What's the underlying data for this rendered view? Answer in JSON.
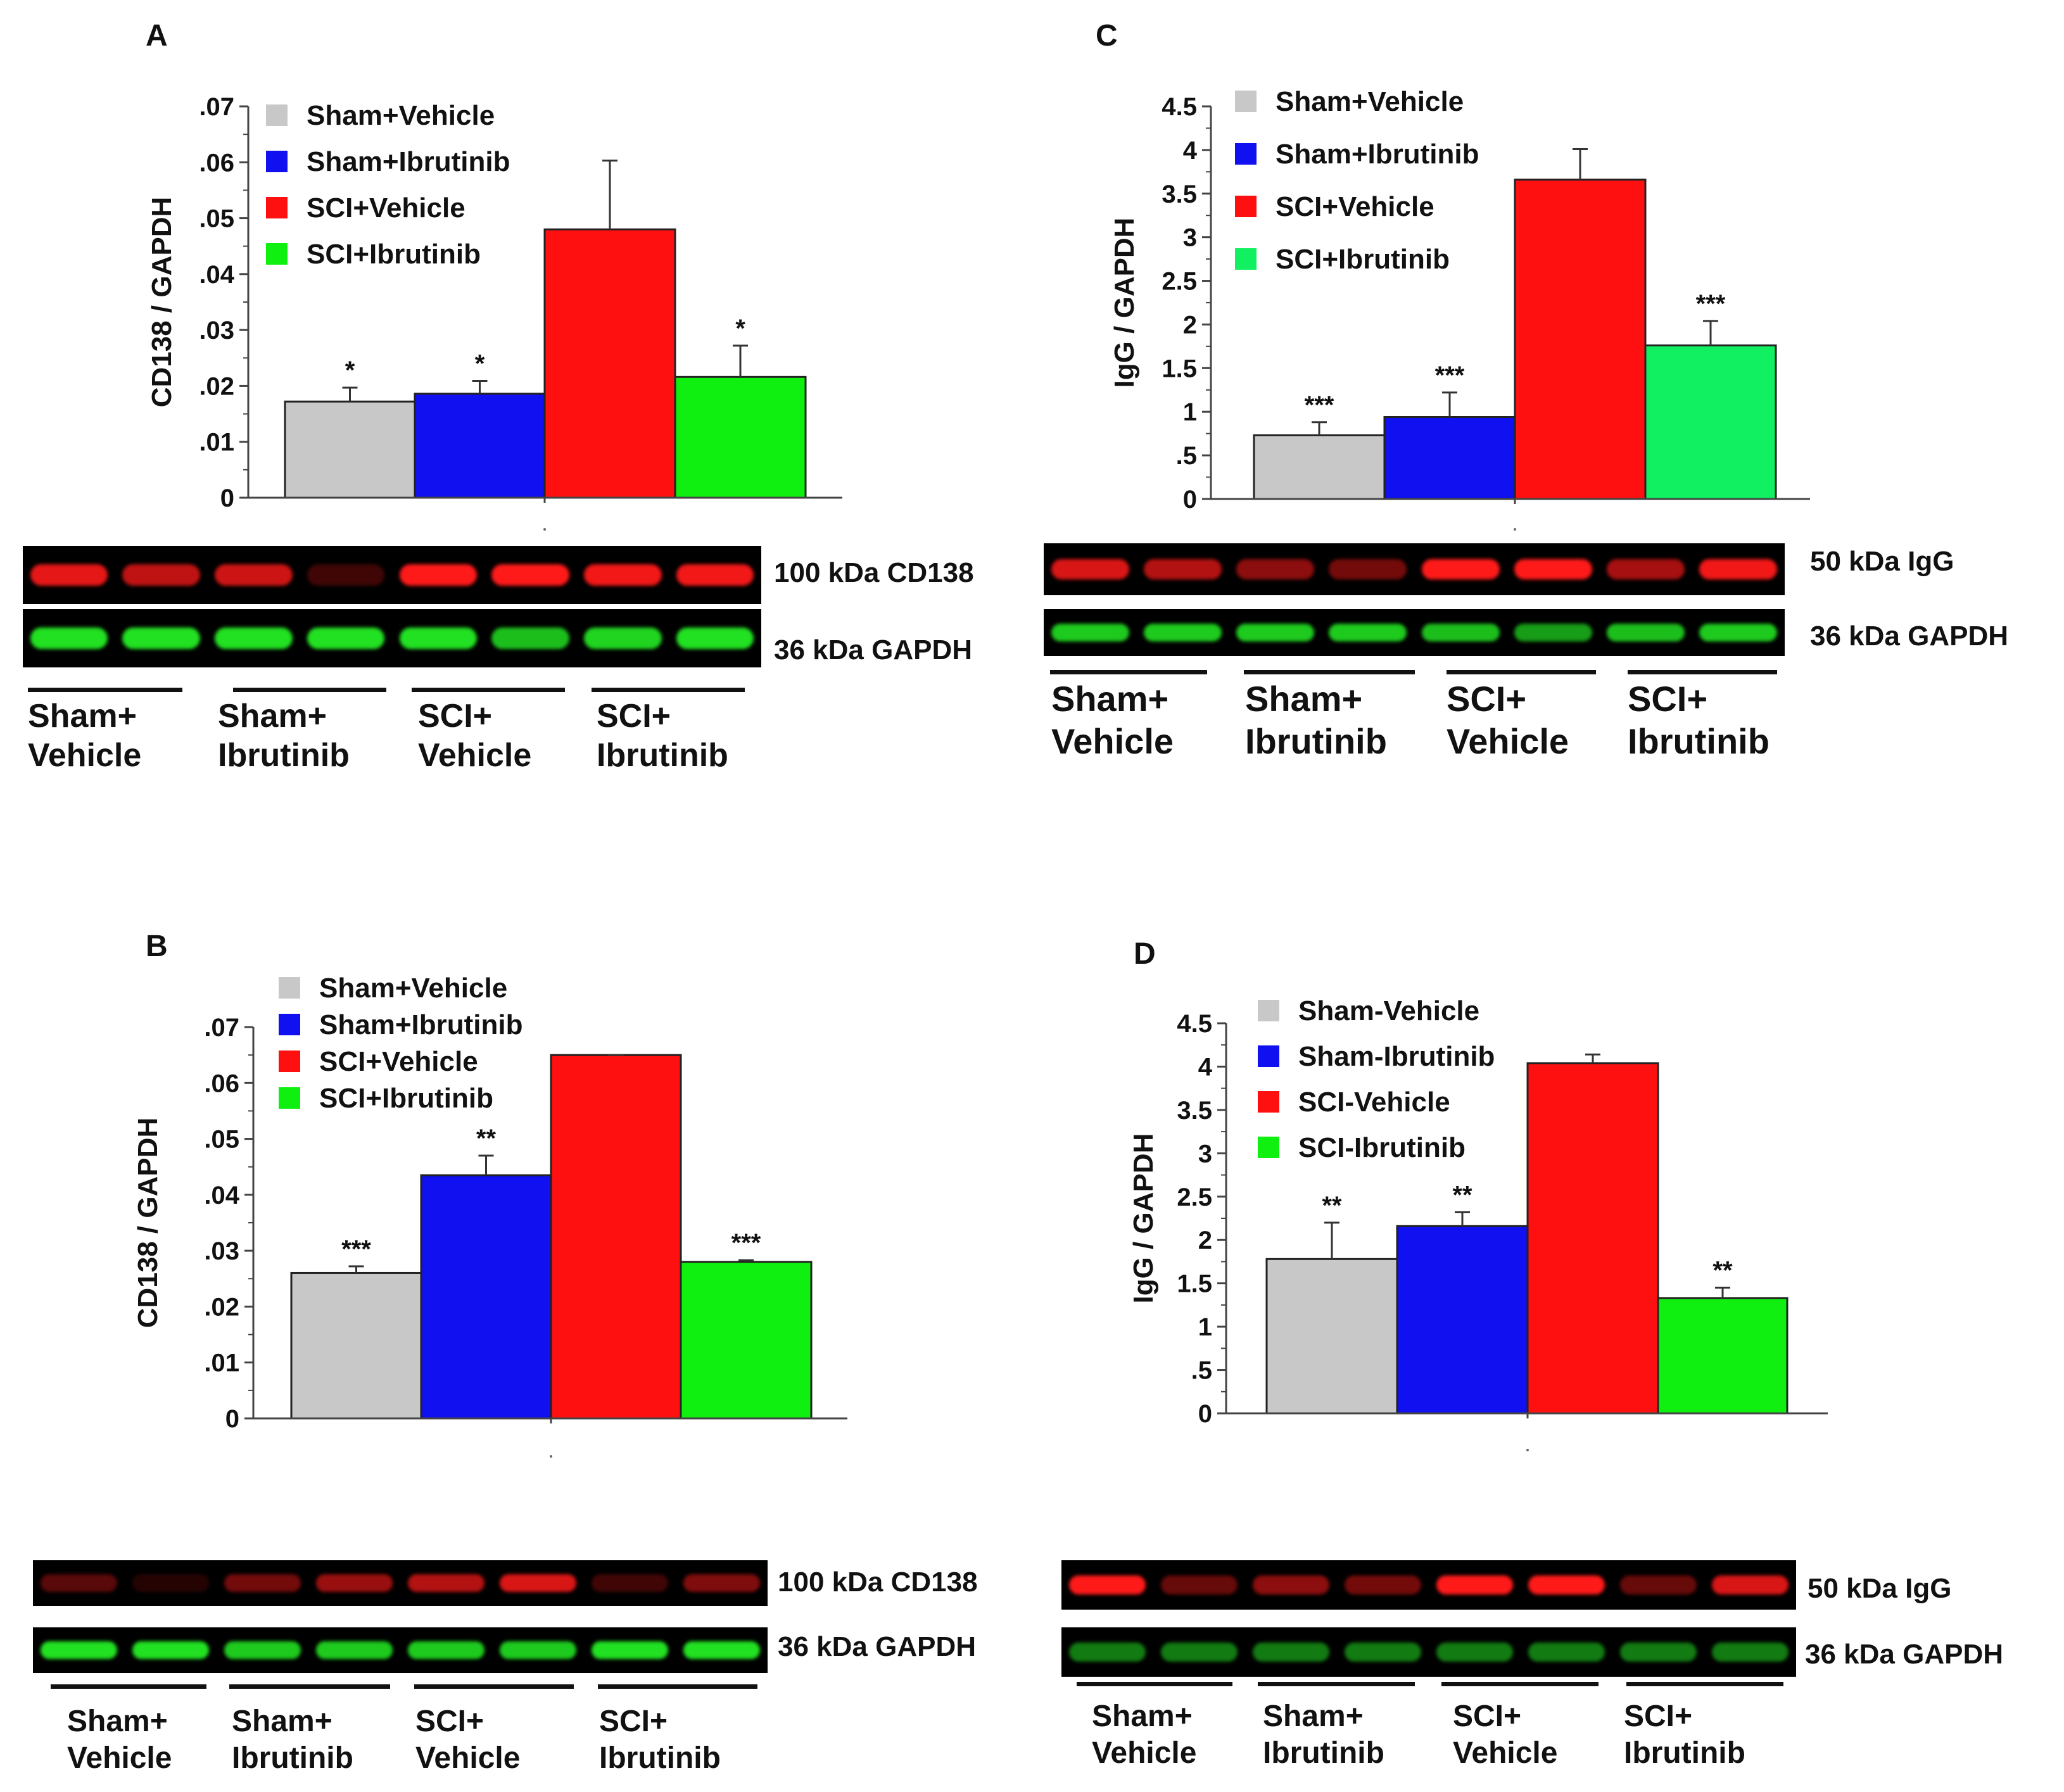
{
  "chart_data": [
    {
      "id": "A",
      "panel_label": "A",
      "type": "bar",
      "ylabel": "CD138 / GAPDH",
      "ylim": [
        0,
        0.07
      ],
      "ytick_values": [
        0,
        0.01,
        0.02,
        0.03,
        0.04,
        0.05,
        0.06,
        0.07
      ],
      "yticks": [
        "0",
        ".01",
        ".02",
        ".03",
        ".04",
        ".05",
        ".06",
        ".07"
      ],
      "categories": [
        "Sham+Vehicle",
        "Sham+Ibrutinib",
        "SCI+Vehicle",
        "SCI+Ibrutinib"
      ],
      "values": [
        0.0172,
        0.0186,
        0.048,
        0.0216
      ],
      "errors": [
        0.0025,
        0.0023,
        0.0123,
        0.0056
      ],
      "significance": [
        "*",
        "*",
        "",
        "*"
      ],
      "colors": [
        "#c8c8c8",
        "#1010f0",
        "#ff1010",
        "#10f010"
      ],
      "legend": [
        "Sham+Vehicle",
        "Sham+Ibrutinib",
        "SCI+Vehicle",
        "SCI+Ibrutinib"
      ],
      "blot": {
        "target_label": "100 kDa CD138",
        "loading_label": "36 kDa GAPDH",
        "groups": [
          [
            "Sham+",
            "Vehicle"
          ],
          [
            "Sham+",
            "Ibrutinib"
          ],
          [
            "SCI+",
            "Vehicle"
          ],
          [
            "SCI+",
            "Ibrutinib"
          ]
        ]
      }
    },
    {
      "id": "B",
      "panel_label": "B",
      "type": "bar",
      "ylabel": "CD138 / GAPDH",
      "ylim": [
        0,
        0.07
      ],
      "ytick_values": [
        0,
        0.01,
        0.02,
        0.03,
        0.04,
        0.05,
        0.06,
        0.07
      ],
      "yticks": [
        "0",
        ".01",
        ".02",
        ".03",
        ".04",
        ".05",
        ".06",
        ".07"
      ],
      "categories": [
        "Sham+Vehicle",
        "Sham+Ibrutinib",
        "SCI+Vehicle",
        "SCI+Ibrutinib"
      ],
      "values": [
        0.026,
        0.0435,
        0.065,
        0.028
      ],
      "errors": [
        0.0012,
        0.0035,
        0.0,
        0.0003
      ],
      "significance": [
        "***",
        "**",
        "",
        "***"
      ],
      "colors": [
        "#c8c8c8",
        "#1010f0",
        "#ff1010",
        "#10f010"
      ],
      "legend": [
        "Sham+Vehicle",
        "Sham+Ibrutinib",
        "SCI+Vehicle",
        "SCI+Ibrutinib"
      ],
      "blot": {
        "target_label": "100 kDa CD138",
        "loading_label": "36 kDa GAPDH",
        "groups": [
          [
            "Sham+",
            "Vehicle"
          ],
          [
            "Sham+",
            "Ibrutinib"
          ],
          [
            "SCI+",
            "Vehicle"
          ],
          [
            "SCI+",
            "Ibrutinib"
          ]
        ]
      }
    },
    {
      "id": "C",
      "panel_label": "C",
      "type": "bar",
      "ylabel": "IgG / GAPDH",
      "ylim": [
        0,
        4.5
      ],
      "ytick_values": [
        0,
        0.5,
        1,
        1.5,
        2,
        2.5,
        3,
        3.5,
        4,
        4.5
      ],
      "yticks": [
        "0",
        ".5",
        "1",
        "1.5",
        "2",
        "2.5",
        "3",
        "3.5",
        "4",
        "4.5"
      ],
      "categories": [
        "Sham+Vehicle",
        "Sham+Ibrutinib",
        "SCI+Vehicle",
        "SCI+Ibrutinib"
      ],
      "values": [
        0.73,
        0.94,
        3.66,
        1.76
      ],
      "errors": [
        0.15,
        0.28,
        0.35,
        0.28
      ],
      "significance": [
        "***",
        "***",
        "",
        "***"
      ],
      "colors": [
        "#c8c8c8",
        "#1010f0",
        "#ff1010",
        "#10f060"
      ],
      "legend": [
        "Sham+Vehicle",
        "Sham+Ibrutinib",
        "SCI+Vehicle",
        "SCI+Ibrutinib"
      ],
      "blot": {
        "target_label": "50 kDa IgG",
        "loading_label": "36 kDa GAPDH",
        "groups": [
          [
            "Sham+",
            "Vehicle"
          ],
          [
            "Sham+",
            "Ibrutinib"
          ],
          [
            "SCI+",
            "Vehicle"
          ],
          [
            "SCI+",
            "Ibrutinib"
          ]
        ]
      }
    },
    {
      "id": "D",
      "panel_label": "D",
      "type": "bar",
      "ylabel": "IgG / GAPDH",
      "ylim": [
        0,
        4.5
      ],
      "ytick_values": [
        0,
        0.5,
        1,
        1.5,
        2,
        2.5,
        3,
        3.5,
        4,
        4.5
      ],
      "yticks": [
        "0",
        ".5",
        "1",
        "1.5",
        "2",
        "2.5",
        "3",
        "3.5",
        "4",
        "4.5"
      ],
      "categories": [
        "Sham-Vehicle",
        "Sham-Ibrutinib",
        "SCI-Vehicle",
        "SCI-Ibrutinib"
      ],
      "values": [
        1.78,
        2.16,
        4.04,
        1.33
      ],
      "errors": [
        0.42,
        0.16,
        0.1,
        0.12
      ],
      "significance": [
        "**",
        "**",
        "",
        "**"
      ],
      "colors": [
        "#c8c8c8",
        "#1010f0",
        "#ff1010",
        "#10f010"
      ],
      "legend": [
        "Sham-Vehicle",
        "Sham-Ibrutinib",
        "SCI-Vehicle",
        "SCI-Ibrutinib"
      ],
      "blot": {
        "target_label": "50 kDa IgG",
        "loading_label": "36 kDa GAPDH",
        "groups": [
          [
            "Sham+",
            "Vehicle"
          ],
          [
            "Sham+",
            "Ibrutinib"
          ],
          [
            "SCI+",
            "Vehicle"
          ],
          [
            "SCI+",
            "Ibrutinib"
          ]
        ]
      }
    }
  ],
  "blot_intensities": {
    "A": {
      "target": [
        0.9,
        0.75,
        0.8,
        0.25,
        1.0,
        1.0,
        0.95,
        0.95
      ],
      "loading": [
        1,
        1,
        1,
        1,
        1,
        0.85,
        0.95,
        1
      ]
    },
    "B": {
      "target": [
        0.35,
        0.15,
        0.45,
        0.6,
        0.7,
        0.85,
        0.25,
        0.5
      ],
      "loading": [
        1,
        1,
        0.9,
        0.9,
        0.9,
        0.9,
        1,
        1
      ]
    },
    "C": {
      "target": [
        0.85,
        0.7,
        0.55,
        0.45,
        1.0,
        1.0,
        0.65,
        0.95
      ],
      "loading": [
        0.9,
        0.9,
        0.9,
        0.9,
        0.85,
        0.7,
        0.85,
        0.9
      ]
    },
    "D": {
      "target": [
        1.0,
        0.4,
        0.55,
        0.45,
        1.0,
        1.0,
        0.4,
        0.85
      ],
      "loading": [
        0.55,
        0.55,
        0.55,
        0.55,
        0.55,
        0.55,
        0.55,
        0.55
      ]
    }
  }
}
